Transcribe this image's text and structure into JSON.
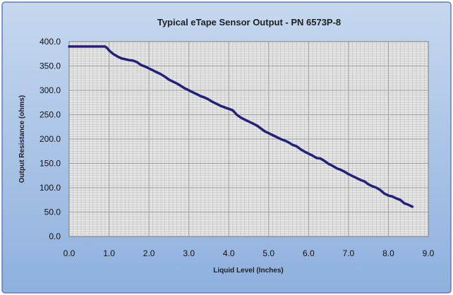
{
  "chart_data": {
    "type": "line",
    "title": "Typical eTape Sensor Output - PN 6573P-8",
    "xlabel": "Liquid Level (Inches)",
    "ylabel": "Output Resistance (ohms)",
    "xlim": [
      0,
      9
    ],
    "ylim": [
      0,
      400
    ],
    "x_ticks": [
      "0.0",
      "1.0",
      "2.0",
      "3.0",
      "4.0",
      "5.0",
      "6.0",
      "7.0",
      "8.0",
      "9.0"
    ],
    "y_ticks": [
      "0.0",
      "50.0",
      "100.0",
      "150.0",
      "200.0",
      "250.0",
      "300.0",
      "350.0",
      "400.0"
    ],
    "grid": true,
    "legend": "none",
    "colors": {
      "background_outer": "#a9c4e4",
      "plot_area": "#e6e6e6",
      "gridline": "#9a9a9a",
      "series": "#22227a"
    },
    "series": [
      {
        "x": [
          0.0,
          0.1,
          0.2,
          0.3,
          0.4,
          0.5,
          0.6,
          0.7,
          0.8,
          0.9,
          0.95,
          1.0,
          1.1,
          1.2,
          1.3,
          1.4,
          1.5,
          1.6,
          1.7,
          1.8,
          1.9,
          2.0,
          2.1,
          2.2,
          2.3,
          2.4,
          2.5,
          2.6,
          2.7,
          2.8,
          2.9,
          3.0,
          3.1,
          3.2,
          3.3,
          3.4,
          3.5,
          3.6,
          3.7,
          3.8,
          3.9,
          4.0,
          4.1,
          4.2,
          4.3,
          4.4,
          4.5,
          4.6,
          4.7,
          4.8,
          4.9,
          5.0,
          5.1,
          5.2,
          5.3,
          5.4,
          5.5,
          5.6,
          5.7,
          5.8,
          5.9,
          6.0,
          6.1,
          6.2,
          6.3,
          6.4,
          6.5,
          6.6,
          6.7,
          6.8,
          6.9,
          7.0,
          7.1,
          7.2,
          7.3,
          7.4,
          7.5,
          7.6,
          7.7,
          7.8,
          7.9,
          8.0,
          8.1,
          8.2,
          8.3,
          8.4,
          8.5,
          8.6
        ],
        "y": [
          390,
          390,
          390,
          390,
          390,
          390,
          390,
          390,
          390,
          390,
          387,
          382,
          375,
          370,
          366,
          364,
          362,
          361,
          358,
          352,
          349,
          345,
          341,
          337,
          333,
          328,
          322,
          318,
          314,
          309,
          304,
          300,
          296,
          292,
          288,
          285,
          281,
          276,
          272,
          268,
          265,
          262,
          259,
          250,
          244,
          240,
          236,
          232,
          228,
          222,
          216,
          212,
          208,
          204,
          200,
          197,
          193,
          188,
          185,
          179,
          174,
          170,
          166,
          161,
          160,
          155,
          149,
          145,
          140,
          137,
          133,
          128,
          124,
          120,
          116,
          113,
          107,
          103,
          100,
          95,
          88,
          84,
          82,
          78,
          75,
          68,
          65,
          61
        ]
      }
    ]
  }
}
